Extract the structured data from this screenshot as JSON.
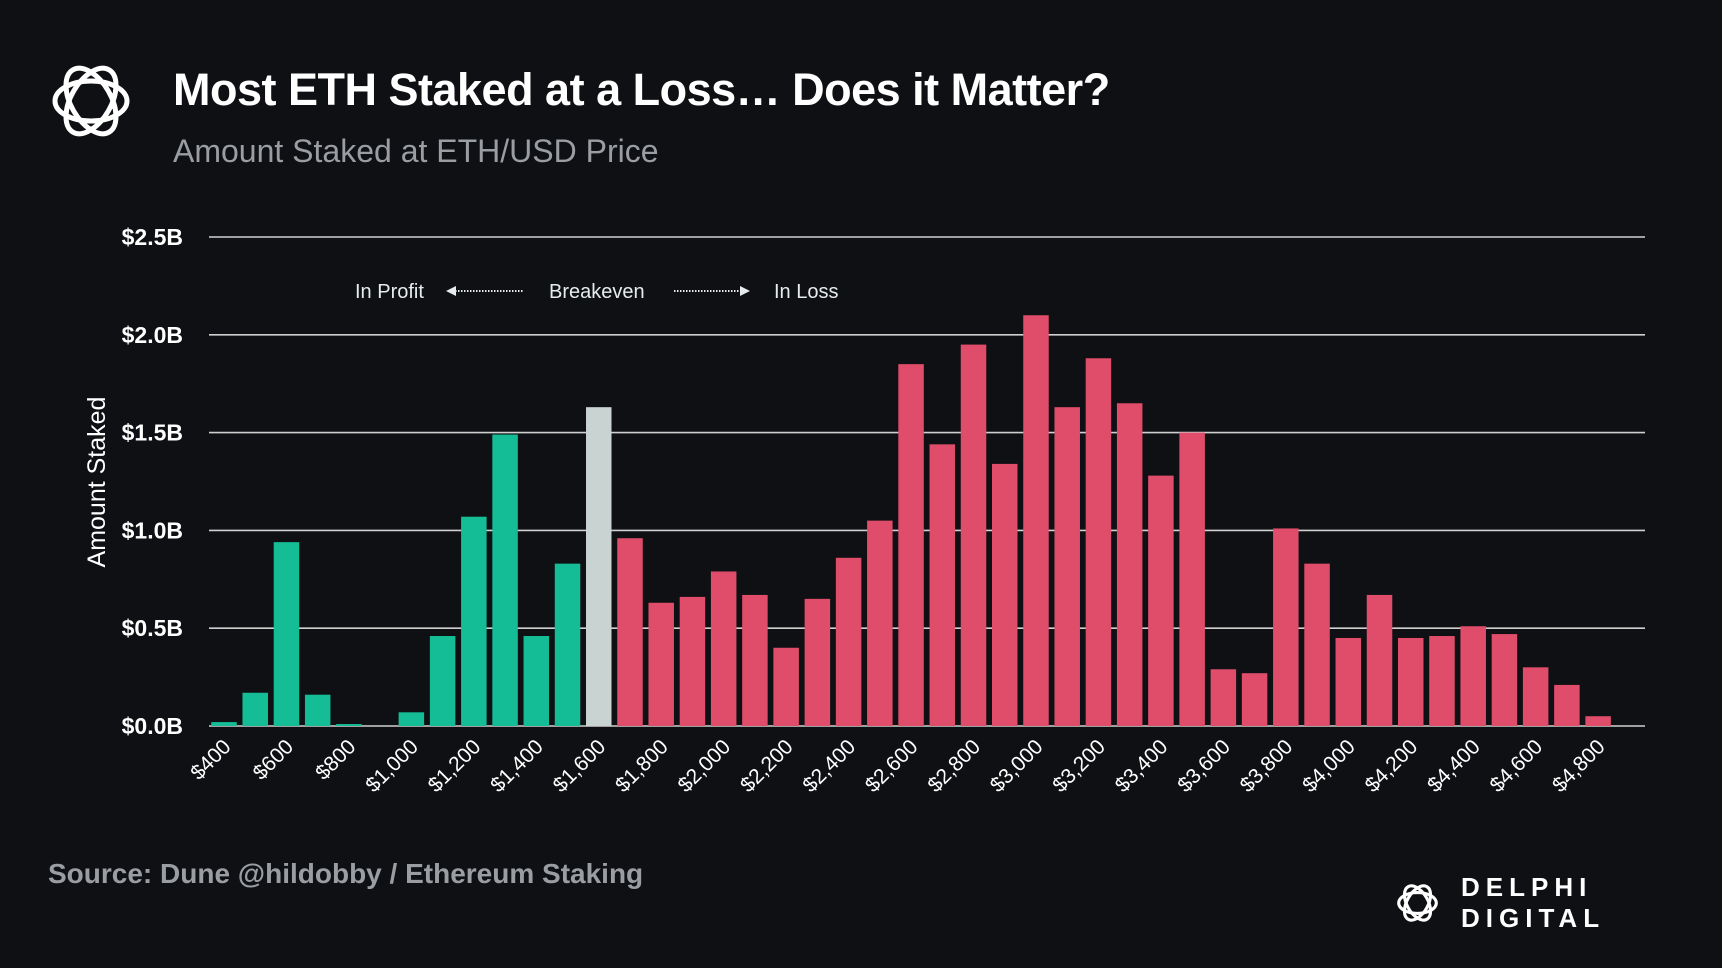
{
  "header": {
    "title": "Most ETH Staked at a Loss… Does it Matter?",
    "subtitle": "Amount Staked at ETH/USD Price"
  },
  "footer": {
    "source": "Source: Dune @hildobby / Ethereum Staking",
    "brand": "DELPHI DIGITAL"
  },
  "colors": {
    "background": "#0f1013",
    "profit": "#14bd95",
    "breakeven": "#c9d4d2",
    "loss": "#e04d6b",
    "grid": "#d0d0d0"
  },
  "chart_data": {
    "type": "bar",
    "ylabel": "Amount Staked",
    "xlabel": "",
    "ylim": [
      0,
      2.5
    ],
    "yticks": [
      "$0.0B",
      "$0.5B",
      "$1.0B",
      "$1.5B",
      "$2.0B",
      "$2.5B"
    ],
    "yunit": "USD billions",
    "grid": true,
    "annotations": {
      "profit": "In Profit",
      "breakeven": "Breakeven",
      "loss": "In Loss"
    },
    "breakeven_price": 1600,
    "categories": [
      400,
      500,
      600,
      700,
      800,
      900,
      1000,
      1100,
      1200,
      1300,
      1400,
      1500,
      1600,
      1700,
      1800,
      1900,
      2000,
      2100,
      2200,
      2300,
      2400,
      2500,
      2600,
      2700,
      2800,
      2900,
      3000,
      3100,
      3200,
      3300,
      3400,
      3500,
      3600,
      3700,
      3800,
      3900,
      4000,
      4100,
      4200,
      4300,
      4400,
      4500,
      4600,
      4700,
      4800
    ],
    "xtick_labels": [
      "$400",
      "$600",
      "$800",
      "$1,000",
      "$1,200",
      "$1,400",
      "$1,600",
      "$1,800",
      "$2,000",
      "$2,200",
      "$2,400",
      "$2,600",
      "$2,800",
      "$3,000",
      "$3,200",
      "$3,400",
      "$3,600",
      "$3,800",
      "$4,000",
      "$4,200",
      "$4,400",
      "$4,600",
      "$4,800"
    ],
    "values": [
      0.02,
      0.17,
      0.94,
      0.16,
      0.01,
      0.0,
      0.07,
      0.46,
      1.07,
      1.49,
      0.46,
      0.83,
      1.63,
      0.96,
      0.63,
      0.66,
      0.79,
      0.67,
      0.4,
      0.65,
      0.86,
      1.05,
      1.85,
      1.44,
      1.95,
      1.34,
      2.1,
      1.63,
      1.88,
      1.65,
      1.28,
      1.5,
      0.29,
      0.27,
      1.01,
      0.83,
      0.45,
      0.67,
      0.45,
      0.46,
      0.51,
      0.47,
      0.3,
      0.21,
      0.05
    ]
  }
}
